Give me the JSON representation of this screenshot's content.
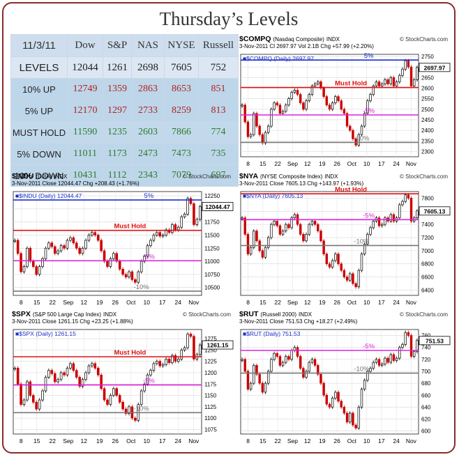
{
  "title": "Thursday’s Levels",
  "table": {
    "header": [
      "11/3/11",
      "Dow",
      "S&P",
      "NAS",
      "NYSE",
      "Russell"
    ],
    "rows": [
      {
        "label": "LEVELS",
        "values": [
          "12044",
          "1261",
          "2698",
          "7605",
          "752"
        ],
        "style": "levels"
      },
      {
        "label": "10% UP",
        "values": [
          "12749",
          "1359",
          "2863",
          "8653",
          "851"
        ],
        "style": "up"
      },
      {
        "label": "5% UP",
        "values": [
          "12170",
          "1297",
          "2733",
          "8259",
          "813"
        ],
        "style": "up"
      },
      {
        "label": "MUST HOLD",
        "values": [
          "11590",
          "1235",
          "2603",
          "7866",
          "774"
        ],
        "style": "hold"
      },
      {
        "label": "5% DOWN",
        "values": [
          "11011",
          "1173",
          "2473",
          "7473",
          "735"
        ],
        "style": "down"
      },
      {
        "label": "10% DOWN",
        "values": [
          "10431",
          "1112",
          "2343",
          "7079",
          "697"
        ],
        "style": "down"
      }
    ]
  },
  "colors": {
    "up_text": "#b02222",
    "down_text": "#2e7a2e",
    "must_hold": "#dd1111",
    "five_pct_up": "#1a2fcc",
    "five_pct_down": "#dd22dd",
    "ten_pct": "#777777",
    "candle_down": "#cc0000",
    "candle_up": "#000000"
  },
  "chart_data": [
    {
      "type": "candlestick",
      "symbol": "$COMPQ",
      "name": "(Nasdaq Composite)",
      "kind": "INDX",
      "watermark": "© StockCharts.com",
      "legend": "$COMPQ (Daily) 2697.97",
      "stats": "3-Nov-2011    Cl 2697.97  Vol 2.1B  Chg +57.99 (+2.20%)",
      "last": "2697.97",
      "ylim": [
        2275,
        2760
      ],
      "yticks": [
        2300,
        2350,
        2400,
        2450,
        2500,
        2550,
        2600,
        2650,
        2700,
        2750
      ],
      "xticks": [
        "8",
        "15",
        "22",
        "Sep",
        "12",
        "19",
        "26",
        "Oct",
        "10",
        "17",
        "24",
        "Nov"
      ],
      "closes": [
        2520,
        2440,
        2370,
        2380,
        2480,
        2420,
        2380,
        2340,
        2390,
        2420,
        2500,
        2530,
        2520,
        2480,
        2490,
        2520,
        2550,
        2580,
        2590,
        2570,
        2530,
        2500,
        2540,
        2570,
        2610,
        2620,
        2630,
        2600,
        2560,
        2520,
        2500,
        2530,
        2560,
        2540,
        2500,
        2480,
        2420,
        2400,
        2360,
        2330,
        2380,
        2420,
        2480,
        2540,
        2570,
        2610,
        2630,
        2610,
        2620,
        2640,
        2620,
        2650,
        2610,
        2630,
        2660,
        2690,
        2730,
        2700,
        2610,
        2640,
        2698
      ],
      "levels": [
        {
          "value": 2733,
          "label": "5%",
          "kind": "five_up"
        },
        {
          "value": 2603,
          "label": "Must Hold",
          "kind": "hold"
        },
        {
          "value": 2473,
          "label": "-5%",
          "kind": "five_down"
        },
        {
          "value": 2343,
          "label": "-10%",
          "kind": "ten_down"
        }
      ]
    },
    {
      "type": "candlestick",
      "symbol": "$INDU",
      "name": "(DJIA)",
      "kind": "INDX",
      "watermark": "© StockCharts.com",
      "legend": "$INDU (Daily) 12044.47",
      "stats": "3-Nov-2011        Close 12044.47  Chg +208.43 (+1.76%)",
      "last": "12044.47",
      "ylim": [
        10350,
        12330
      ],
      "yticks": [
        10500,
        10750,
        11000,
        11250,
        11500,
        11750,
        12000,
        12250
      ],
      "xticks": [
        "8",
        "15",
        "22",
        "Sep",
        "12",
        "19",
        "26",
        "Oct",
        "10",
        "17",
        "24",
        "Nov"
      ],
      "closes": [
        11400,
        11150,
        10800,
        10900,
        11250,
        11000,
        10900,
        10750,
        10900,
        11050,
        11250,
        11350,
        11280,
        11150,
        11200,
        11300,
        11250,
        11400,
        11450,
        11350,
        11250,
        11150,
        11250,
        11400,
        11500,
        11550,
        11500,
        11400,
        11200,
        11000,
        10900,
        11050,
        11150,
        11000,
        10850,
        10750,
        10700,
        10800,
        10650,
        10600,
        10800,
        11000,
        11100,
        11300,
        11400,
        11500,
        11550,
        11480,
        11500,
        11600,
        11550,
        11700,
        11600,
        11650,
        11850,
        11900,
        12200,
        12100,
        11700,
        11800,
        12044
      ],
      "levels": [
        {
          "value": 12170,
          "label": "5%",
          "kind": "five_up"
        },
        {
          "value": 11590,
          "label": "Must Hold",
          "kind": "hold"
        },
        {
          "value": 11011,
          "label": "-5%",
          "kind": "five_down"
        },
        {
          "value": 10431,
          "label": "-10%",
          "kind": "ten_down"
        }
      ]
    },
    {
      "type": "candlestick",
      "symbol": "$NYA",
      "name": "(NYSE Composite Index)",
      "kind": "INDX",
      "watermark": "© StockCharts.com",
      "legend": "$NYA (Daily) 7605.13",
      "stats": "3-Nov-2011        Close 7605.13  Chg +143.97 (+1.93%)",
      "last": "7605.13",
      "ylim": [
        6320,
        7900
      ],
      "yticks": [
        6400,
        6600,
        6800,
        7000,
        7200,
        7400,
        7600,
        7800
      ],
      "xticks": [
        "8",
        "15",
        "22",
        "Sep",
        "12",
        "19",
        "26",
        "Oct",
        "10",
        "17",
        "24",
        "Nov"
      ],
      "closes": [
        7500,
        7250,
        6950,
        7050,
        7300,
        7150,
        7000,
        6900,
        7050,
        7200,
        7400,
        7450,
        7380,
        7250,
        7300,
        7400,
        7350,
        7500,
        7550,
        7400,
        7250,
        7150,
        7250,
        7400,
        7450,
        7400,
        7300,
        7150,
        6950,
        6800,
        6750,
        6850,
        6950,
        6800,
        6700,
        6600,
        6550,
        6650,
        6500,
        6450,
        6700,
        6950,
        7100,
        7250,
        7350,
        7450,
        7500,
        7380,
        7400,
        7500,
        7450,
        7550,
        7450,
        7500,
        7700,
        7750,
        7850,
        7800,
        7450,
        7500,
        7605
      ],
      "levels": [
        {
          "value": 7866,
          "label": "Must Hold",
          "kind": "hold"
        },
        {
          "value": 7473,
          "label": "-5%",
          "kind": "five_down"
        },
        {
          "value": 7079,
          "label": "-10%",
          "kind": "ten_down"
        }
      ]
    },
    {
      "type": "candlestick",
      "symbol": "$SPX",
      "name": "(S&P 500 Large Cap Index)",
      "kind": "INDX",
      "watermark": "© StockCharts.com",
      "legend": "$SPX (Daily) 1261.15",
      "stats": "3-Nov-2011        Close 1261.15  Chg +23.25 (+1.88%)",
      "last": "1261.15",
      "ylim": [
        1065,
        1295
      ],
      "yticks": [
        1075,
        1100,
        1125,
        1150,
        1175,
        1200,
        1225,
        1250,
        1275
      ],
      "xticks": [
        "8",
        "15",
        "22",
        "Sep",
        "12",
        "19",
        "26",
        "Oct",
        "10",
        "17",
        "24",
        "Nov"
      ],
      "closes": [
        1210,
        1175,
        1130,
        1140,
        1180,
        1150,
        1135,
        1120,
        1140,
        1160,
        1190,
        1205,
        1198,
        1180,
        1185,
        1200,
        1195,
        1210,
        1220,
        1205,
        1190,
        1170,
        1185,
        1200,
        1215,
        1220,
        1210,
        1195,
        1165,
        1140,
        1130,
        1150,
        1165,
        1150,
        1135,
        1120,
        1110,
        1125,
        1100,
        1095,
        1130,
        1160,
        1175,
        1195,
        1205,
        1220,
        1225,
        1215,
        1218,
        1230,
        1222,
        1238,
        1225,
        1230,
        1250,
        1255,
        1285,
        1280,
        1230,
        1240,
        1261
      ],
      "levels": [
        {
          "value": 1297,
          "label": "5%",
          "kind": "five_up"
        },
        {
          "value": 1235,
          "label": "Must Hold",
          "kind": "hold"
        },
        {
          "value": 1173,
          "label": "-5%",
          "kind": "five_down"
        },
        {
          "value": 1112,
          "label": "-10%",
          "kind": "ten_down"
        }
      ]
    },
    {
      "type": "candlestick",
      "symbol": "$RUT",
      "name": "(Russell 2000)",
      "kind": "INDX",
      "watermark": "© StockCharts.com",
      "legend": "$RUT (Daily) 751.53",
      "stats": "3-Nov-2011        Close 751.53  Chg +18.27 (+2.49%)",
      "last": "751.53",
      "ylim": [
        595,
        770
      ],
      "yticks": [
        600,
        620,
        640,
        660,
        680,
        700,
        720,
        740,
        760
      ],
      "xticks": [
        "8",
        "15",
        "22",
        "Sep",
        "12",
        "19",
        "26",
        "Oct",
        "10",
        "17",
        "24",
        "Nov"
      ],
      "closes": [
        720,
        700,
        670,
        680,
        710,
        695,
        680,
        665,
        680,
        700,
        720,
        730,
        725,
        710,
        715,
        725,
        720,
        735,
        740,
        725,
        705,
        690,
        700,
        715,
        720,
        710,
        695,
        680,
        660,
        645,
        640,
        655,
        665,
        650,
        640,
        630,
        615,
        630,
        610,
        605,
        640,
        670,
        685,
        700,
        705,
        715,
        720,
        710,
        712,
        722,
        715,
        728,
        718,
        722,
        740,
        745,
        765,
        760,
        725,
        733,
        752
      ],
      "levels": [
        {
          "value": 774,
          "label": "Must Hold",
          "kind": "hold"
        },
        {
          "value": 735,
          "label": "-5%",
          "kind": "five_down"
        },
        {
          "value": 697,
          "label": "-10%",
          "kind": "ten_down"
        }
      ]
    }
  ]
}
